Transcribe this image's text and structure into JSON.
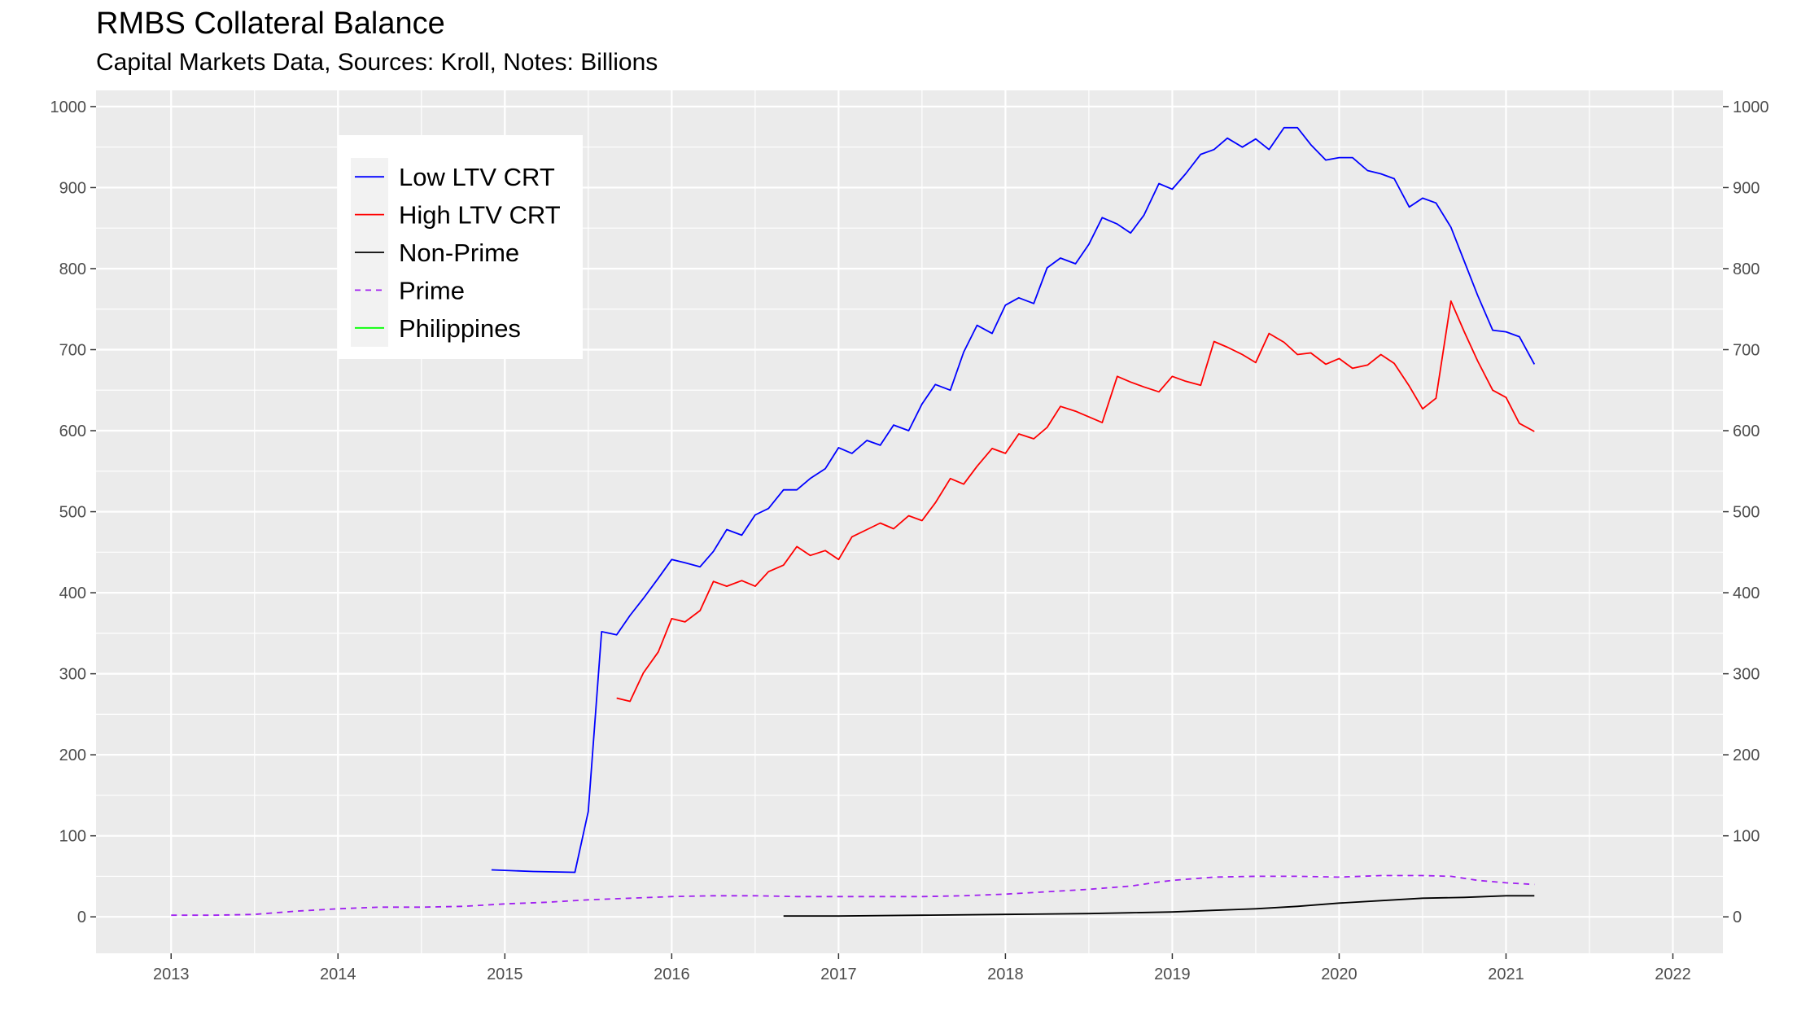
{
  "chart_data": {
    "type": "line",
    "title": "RMBS Collateral Balance",
    "subtitle": "Capital Markets Data, Sources: Kroll, Notes: Billions",
    "xlabel": "",
    "ylabel": "",
    "xlim": [
      2012.55,
      2022.3
    ],
    "ylim": [
      -45,
      1020
    ],
    "x_ticks": [
      "2013",
      "2014",
      "2015",
      "2016",
      "2017",
      "2018",
      "2019",
      "2020",
      "2021",
      "2022"
    ],
    "y_ticks": [
      "0",
      "100",
      "200",
      "300",
      "400",
      "500",
      "600",
      "700",
      "800",
      "900",
      "1000"
    ],
    "grid": true,
    "secondary_y_axis": true,
    "legend_position": "top-left",
    "series": [
      {
        "name": "Low LTV CRT",
        "color": "#0000ff",
        "line_style": "solid",
        "x": [
          2014.92,
          2015.17,
          2015.42,
          2015.5,
          2015.58,
          2015.67,
          2015.75,
          2015.83,
          2015.92,
          2016.0,
          2016.08,
          2016.17,
          2016.25,
          2016.33,
          2016.42,
          2016.5,
          2016.58,
          2016.67,
          2016.75,
          2016.83,
          2016.92,
          2017.0,
          2017.08,
          2017.17,
          2017.25,
          2017.33,
          2017.42,
          2017.5,
          2017.58,
          2017.67,
          2017.75,
          2017.83,
          2017.92,
          2018.0,
          2018.08,
          2018.17,
          2018.25,
          2018.33,
          2018.42,
          2018.5,
          2018.58,
          2018.67,
          2018.75,
          2018.83,
          2018.92,
          2019.0,
          2019.08,
          2019.17,
          2019.25,
          2019.33,
          2019.42,
          2019.5,
          2019.58,
          2019.67,
          2019.75,
          2019.83,
          2019.92,
          2020.0,
          2020.08,
          2020.17,
          2020.25,
          2020.33,
          2020.42,
          2020.5,
          2020.58,
          2020.67,
          2020.75,
          2020.83,
          2020.92,
          2021.0,
          2021.08,
          2021.17
        ],
        "y": [
          58,
          56,
          55,
          130,
          352,
          348,
          372,
          393,
          418,
          441,
          437,
          432,
          451,
          478,
          471,
          496,
          504,
          527,
          527,
          541,
          553,
          579,
          572,
          588,
          582,
          607,
          600,
          633,
          657,
          650,
          697,
          730,
          720,
          755,
          764,
          757,
          801,
          813,
          806,
          830,
          863,
          855,
          844,
          866,
          905,
          898,
          917,
          941,
          947,
          961,
          950,
          960,
          947,
          974,
          974,
          953,
          934,
          937,
          937,
          921,
          917,
          911,
          876,
          887,
          881,
          851,
          809,
          767,
          724,
          722,
          716,
          682
        ]
      },
      {
        "name": "High LTV CRT",
        "color": "#ff0000",
        "line_style": "solid",
        "x": [
          2015.67,
          2015.75,
          2015.83,
          2015.92,
          2016.0,
          2016.08,
          2016.17,
          2016.25,
          2016.33,
          2016.42,
          2016.5,
          2016.58,
          2016.67,
          2016.75,
          2016.83,
          2016.92,
          2017.0,
          2017.08,
          2017.17,
          2017.25,
          2017.33,
          2017.42,
          2017.5,
          2017.58,
          2017.67,
          2017.75,
          2017.83,
          2017.92,
          2018.0,
          2018.08,
          2018.17,
          2018.25,
          2018.33,
          2018.42,
          2018.5,
          2018.58,
          2018.67,
          2018.75,
          2018.83,
          2018.92,
          2019.0,
          2019.08,
          2019.17,
          2019.25,
          2019.33,
          2019.42,
          2019.5,
          2019.58,
          2019.67,
          2019.75,
          2019.83,
          2019.92,
          2020.0,
          2020.08,
          2020.17,
          2020.25,
          2020.33,
          2020.42,
          2020.5,
          2020.58,
          2020.67,
          2020.75,
          2020.83,
          2020.92,
          2021.0,
          2021.08,
          2021.17
        ],
        "y": [
          270,
          266,
          301,
          327,
          368,
          364,
          378,
          414,
          408,
          415,
          408,
          426,
          434,
          457,
          446,
          452,
          441,
          469,
          478,
          486,
          479,
          495,
          489,
          511,
          541,
          534,
          556,
          578,
          572,
          596,
          590,
          604,
          630,
          624,
          617,
          610,
          667,
          660,
          654,
          648,
          667,
          661,
          656,
          710,
          703,
          694,
          684,
          720,
          709,
          694,
          696,
          682,
          689,
          677,
          681,
          694,
          683,
          655,
          627,
          640,
          760,
          722,
          686,
          650,
          641,
          609,
          599
        ]
      },
      {
        "name": "Non-Prime",
        "color": "#000000",
        "line_style": "solid",
        "x": [
          2016.67,
          2017.0,
          2017.5,
          2018.0,
          2018.5,
          2018.75,
          2019.0,
          2019.25,
          2019.5,
          2019.75,
          2020.0,
          2020.25,
          2020.5,
          2020.75,
          2021.0,
          2021.17
        ],
        "y": [
          1,
          1,
          2,
          3,
          4,
          5,
          6,
          8,
          10,
          13,
          17,
          20,
          23,
          24,
          26,
          26
        ]
      },
      {
        "name": "Prime",
        "color": "#a020f0",
        "line_style": "dashed",
        "x": [
          2013.0,
          2013.25,
          2013.5,
          2013.75,
          2014.0,
          2014.25,
          2014.5,
          2014.75,
          2015.0,
          2015.25,
          2015.5,
          2015.75,
          2016.0,
          2016.25,
          2016.5,
          2016.75,
          2017.0,
          2017.25,
          2017.5,
          2017.75,
          2018.0,
          2018.25,
          2018.5,
          2018.75,
          2018.92,
          2019.0,
          2019.25,
          2019.5,
          2019.75,
          2020.0,
          2020.25,
          2020.5,
          2020.67,
          2020.83,
          2021.0,
          2021.17
        ],
        "y": [
          2,
          2,
          3,
          7,
          10,
          12,
          12,
          13,
          16,
          18,
          21,
          23,
          25,
          26,
          26,
          25,
          25,
          25,
          25,
          26,
          28,
          31,
          34,
          38,
          43,
          45,
          49,
          50,
          50,
          49,
          51,
          51,
          50,
          45,
          42,
          40
        ]
      },
      {
        "name": "Philippines",
        "color": "#00ff00",
        "line_style": "solid",
        "x": [],
        "y": []
      }
    ]
  }
}
